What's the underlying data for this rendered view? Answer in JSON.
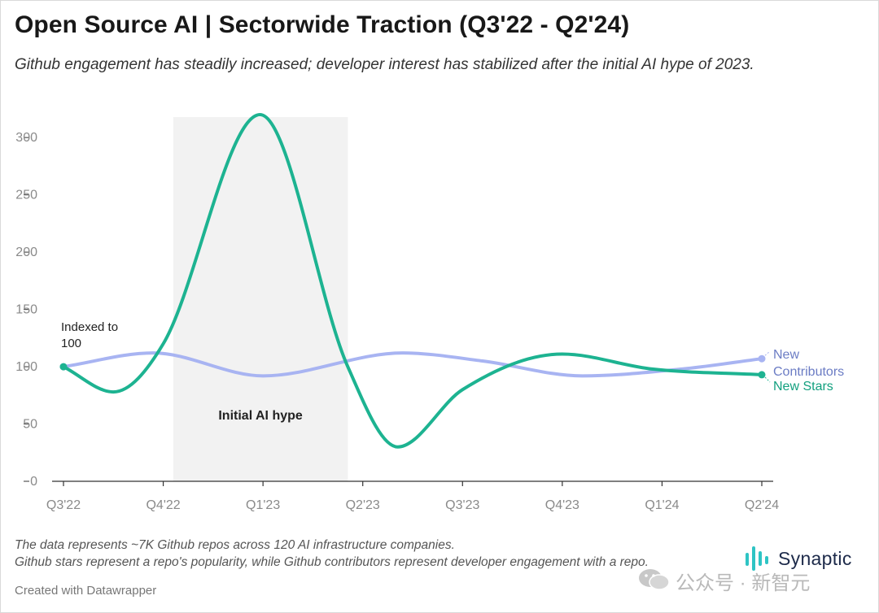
{
  "header": {
    "title": "Open Source AI | Sectorwide Traction (Q3'22 - Q2'24)",
    "subtitle": "Github engagement has steadily increased; developer interest has stabilized after the initial AI hype of 2023."
  },
  "footer": {
    "note_1": "The data represents ~7K Github repos across 120 AI infrastructure companies.",
    "note_2": "Github stars represent a repo's popularity, while Github contributors represent developer engagement with a repo.",
    "credit": "Created with Datawrapper",
    "logo_text": "Synaptic",
    "watermark_text": "公众号 · 新智元"
  },
  "chart_data": {
    "type": "line",
    "title": "Open Source AI | Sectorwide Traction (Q3'22 - Q2'24)",
    "categories": [
      "Q3'22",
      "Q4'22",
      "Q1'23",
      "Q2'23",
      "Q3'23",
      "Q4'23",
      "Q1'24",
      "Q2'24"
    ],
    "ylim": [
      0,
      320
    ],
    "yticks": [
      0,
      50,
      100,
      150,
      200,
      250,
      300
    ],
    "grid": false,
    "series": [
      {
        "name": "New Contributors",
        "color": "#a8b4f2",
        "label_color": "#6b7cc4",
        "x": [
          0,
          0.9,
          2,
          3.4,
          4.2,
          5.2,
          6.2,
          7
        ],
        "values": [
          100,
          112,
          92,
          112,
          105,
          92,
          98,
          107
        ]
      },
      {
        "name": "New Stars",
        "color": "#1db391",
        "label_color": "#13a07f",
        "x": [
          0,
          0.5,
          1,
          1.97,
          2.85,
          3.35,
          4.0,
          5.0,
          5.9,
          7
        ],
        "values": [
          100,
          78,
          120,
          320,
          100,
          30,
          80,
          111,
          98,
          93
        ]
      }
    ],
    "highlight_band": {
      "from": 1.1,
      "to": 2.85,
      "label": "Initial AI hype",
      "color": "#f2f2f2"
    },
    "annotation": {
      "text_line1": "Indexed to",
      "text_line2": "100",
      "x": 0,
      "y": 100
    }
  }
}
